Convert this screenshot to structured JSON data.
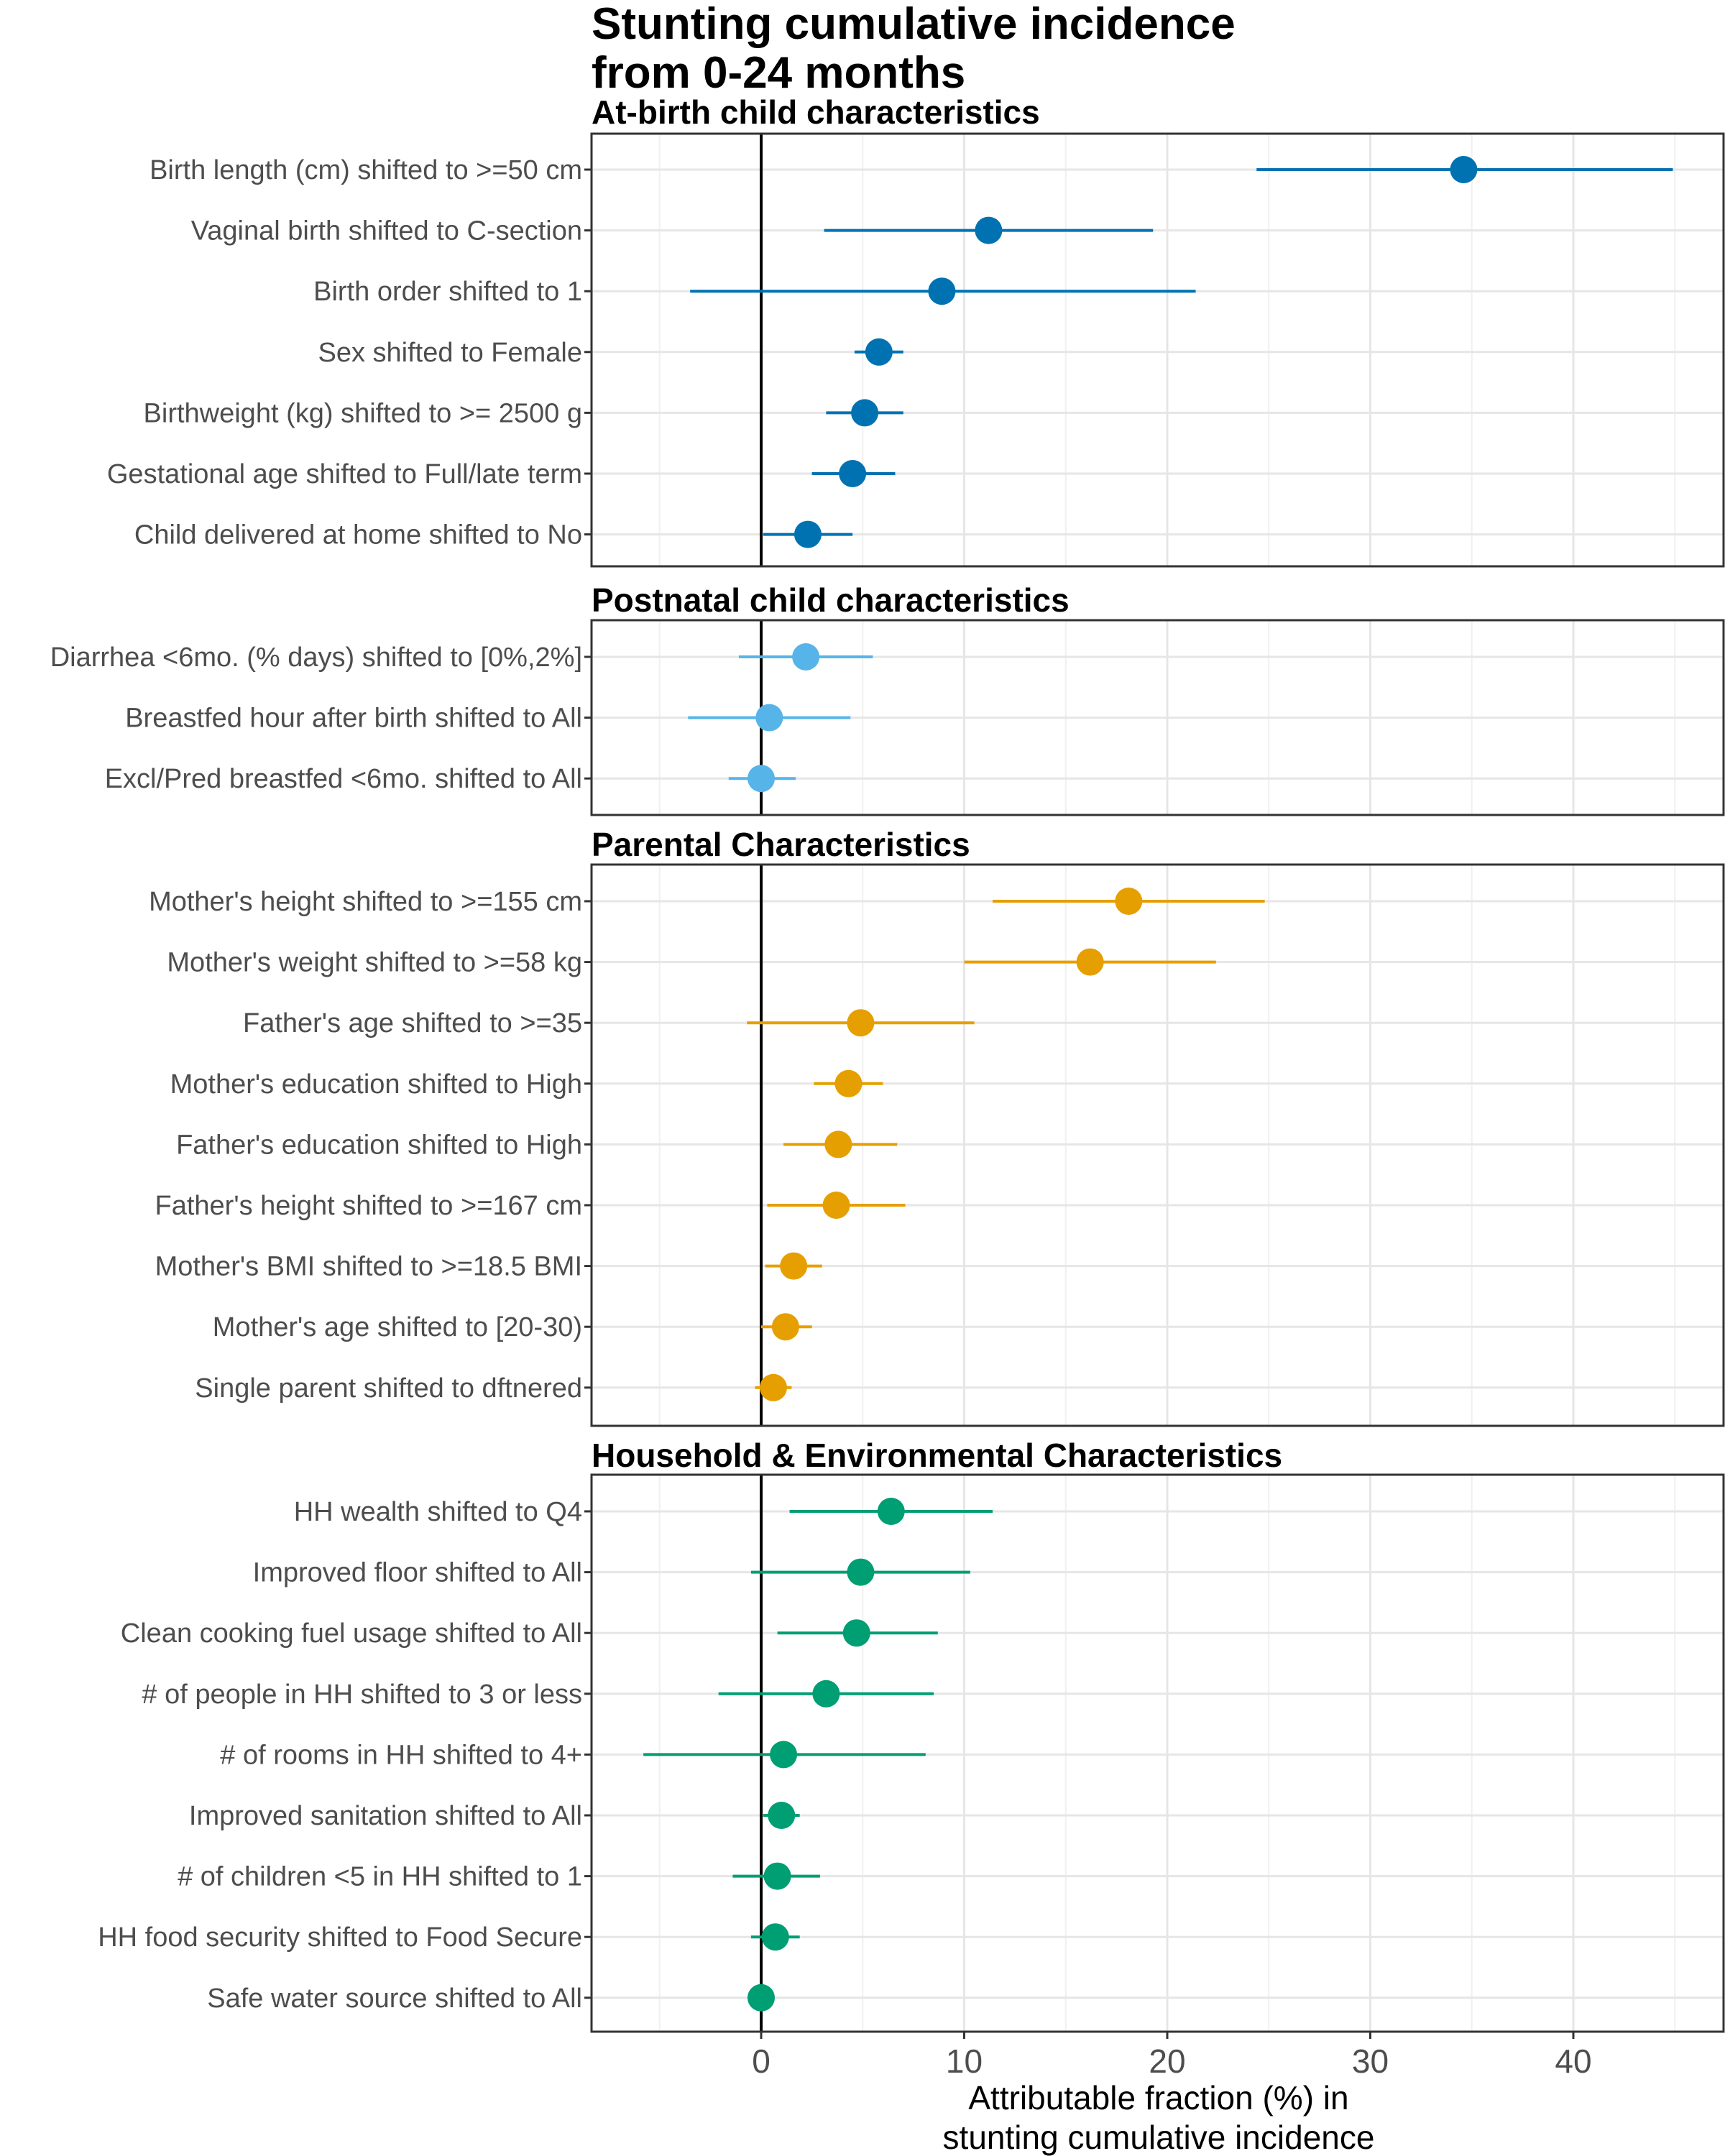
{
  "chart_data": {
    "type": "scatter",
    "title": [
      "Stunting cumulative incidence",
      "from 0-24 months"
    ],
    "xlabel": [
      "Attributable fraction (%) in",
      "stunting cumulative incidence"
    ],
    "xlim": [
      -8.5,
      47.5
    ],
    "x_ticks": [
      0,
      10,
      20,
      30,
      40
    ],
    "x_tick_labels": [
      "0",
      "10",
      "20",
      "30",
      "40"
    ],
    "reference_line": 0,
    "grid": true,
    "panels": [
      {
        "title": "At-birth child characteristics",
        "color": "#0072B2",
        "rows": [
          {
            "label": "Birth length (cm) shifted to >=50 cm",
            "estimate": 34.6,
            "lower": 24.4,
            "upper": 44.9
          },
          {
            "label": "Vaginal birth shifted to C-section",
            "estimate": 11.2,
            "lower": 3.1,
            "upper": 19.3
          },
          {
            "label": "Birth order shifted to 1",
            "estimate": 8.9,
            "lower": -3.5,
            "upper": 21.4
          },
          {
            "label": "Sex shifted to Female",
            "estimate": 5.8,
            "lower": 4.6,
            "upper": 7.0
          },
          {
            "label": "Birthweight (kg) shifted to >= 2500 g",
            "estimate": 5.1,
            "lower": 3.2,
            "upper": 7.0
          },
          {
            "label": "Gestational age shifted to Full/late term",
            "estimate": 4.5,
            "lower": 2.5,
            "upper": 6.6
          },
          {
            "label": "Child delivered at home shifted to No",
            "estimate": 2.3,
            "lower": 0.1,
            "upper": 4.5
          }
        ]
      },
      {
        "title": "Postnatal child characteristics",
        "color": "#56B4E9",
        "rows": [
          {
            "label": "Diarrhea <6mo. (% days) shifted to [0%,2%]",
            "estimate": 2.2,
            "lower": -1.1,
            "upper": 5.5
          },
          {
            "label": "Breastfed hour after birth shifted to All",
            "estimate": 0.4,
            "lower": -3.6,
            "upper": 4.4
          },
          {
            "label": "Excl/Pred breastfed <6mo. shifted to All",
            "estimate": 0.0,
            "lower": -1.6,
            "upper": 1.7
          }
        ]
      },
      {
        "title": "Parental Characteristics",
        "color": "#E69F00",
        "rows": [
          {
            "label": "Mother's height shifted to >=155 cm",
            "estimate": 18.1,
            "lower": 11.4,
            "upper": 24.8
          },
          {
            "label": "Mother's weight shifted to >=58 kg",
            "estimate": 16.2,
            "lower": 10.0,
            "upper": 22.4
          },
          {
            "label": "Father's age shifted to >=35",
            "estimate": 4.9,
            "lower": -0.7,
            "upper": 10.5
          },
          {
            "label": "Mother's education shifted to High",
            "estimate": 4.3,
            "lower": 2.6,
            "upper": 6.0
          },
          {
            "label": "Father's education shifted to High",
            "estimate": 3.8,
            "lower": 1.1,
            "upper": 6.7
          },
          {
            "label": "Father's height shifted to >=167 cm",
            "estimate": 3.7,
            "lower": 0.3,
            "upper": 7.1
          },
          {
            "label": "Mother's BMI shifted to >=18.5 BMI",
            "estimate": 1.6,
            "lower": 0.2,
            "upper": 3.0
          },
          {
            "label": "Mother's age shifted to [20-30)",
            "estimate": 1.2,
            "lower": 0.0,
            "upper": 2.5
          },
          {
            "label": "Single parent shifted to dftnered",
            "estimate": 0.6,
            "lower": -0.3,
            "upper": 1.5
          }
        ]
      },
      {
        "title": "Household & Environmental Characteristics",
        "color": "#009E73",
        "rows": [
          {
            "label": "HH wealth shifted to Q4",
            "estimate": 6.4,
            "lower": 1.4,
            "upper": 11.4
          },
          {
            "label": "Improved floor shifted to All",
            "estimate": 4.9,
            "lower": -0.5,
            "upper": 10.3
          },
          {
            "label": "Clean cooking fuel usage shifted to All",
            "estimate": 4.7,
            "lower": 0.8,
            "upper": 8.7
          },
          {
            "label": "# of people in HH shifted to 3 or less",
            "estimate": 3.2,
            "lower": -2.1,
            "upper": 8.5
          },
          {
            "label": "# of rooms in HH shifted to 4+",
            "estimate": 1.1,
            "lower": -5.8,
            "upper": 8.1
          },
          {
            "label": "Improved sanitation shifted to All",
            "estimate": 1.0,
            "lower": 0.1,
            "upper": 1.9
          },
          {
            "label": "# of children <5 in HH shifted to 1",
            "estimate": 0.8,
            "lower": -1.4,
            "upper": 2.9
          },
          {
            "label": "HH food security shifted to Food Secure",
            "estimate": 0.7,
            "lower": -0.5,
            "upper": 1.9
          },
          {
            "label": "Safe water source shifted to All",
            "estimate": 0.0,
            "lower": 0.0,
            "upper": 0.0
          }
        ]
      }
    ]
  }
}
